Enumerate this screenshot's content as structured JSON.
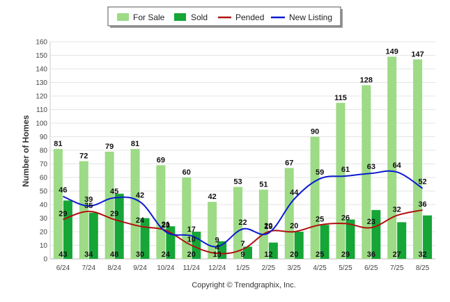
{
  "chart_data": {
    "type": "bar",
    "categories": [
      "6/24",
      "7/24",
      "8/24",
      "9/24",
      "10/24",
      "11/24",
      "12/24",
      "1/25",
      "2/25",
      "3/25",
      "4/25",
      "5/25",
      "6/25",
      "7/25",
      "8/25"
    ],
    "ylabel": "Number of Homes",
    "ylim": [
      0,
      160
    ],
    "yticks": [
      0,
      10,
      20,
      30,
      40,
      50,
      60,
      70,
      80,
      90,
      100,
      110,
      120,
      130,
      140,
      150,
      160
    ],
    "grid": true,
    "legend_position": "top",
    "series": [
      {
        "name": "For Sale",
        "kind": "bar",
        "color": "#9ddb86",
        "values": [
          81,
          72,
          79,
          81,
          69,
          60,
          42,
          53,
          51,
          67,
          90,
          115,
          128,
          149,
          147
        ]
      },
      {
        "name": "Sold",
        "kind": "bar",
        "color": "#16a537",
        "values": [
          43,
          34,
          48,
          30,
          24,
          20,
          13,
          9,
          12,
          20,
          25,
          29,
          36,
          27,
          32
        ]
      },
      {
        "name": "Pended",
        "kind": "line",
        "color": "#b01010",
        "values": [
          29,
          35,
          29,
          24,
          21,
          10,
          4,
          7,
          20,
          20,
          25,
          26,
          23,
          32,
          36
        ]
      },
      {
        "name": "New Listing",
        "kind": "line",
        "color": "#0a1ad0",
        "values": [
          46,
          39,
          45,
          42,
          20,
          17,
          9,
          22,
          19,
          44,
          59,
          61,
          63,
          64,
          52
        ]
      }
    ],
    "footer": "Copyright © Trendgraphix, Inc."
  }
}
